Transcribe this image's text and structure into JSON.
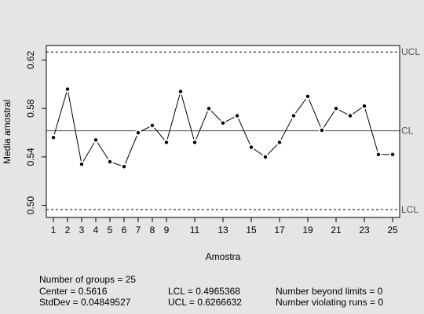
{
  "chart_data": {
    "type": "line",
    "xlabel": "Amostra",
    "ylabel": "Media amostral",
    "xlim": [
      0.5,
      25.5
    ],
    "ylim": [
      0.49,
      0.632
    ],
    "x_ticks": [
      1,
      2,
      3,
      4,
      5,
      6,
      7,
      8,
      9,
      11,
      13,
      15,
      17,
      19,
      21,
      23,
      25
    ],
    "y_ticks": [
      0.5,
      0.54,
      0.58,
      0.62
    ],
    "y_tick_labels": [
      "0.50",
      "0.54",
      "0.58",
      "0.62"
    ],
    "grid": false,
    "x": [
      1,
      2,
      3,
      4,
      5,
      6,
      7,
      8,
      9,
      10,
      11,
      12,
      13,
      14,
      15,
      16,
      17,
      18,
      19,
      20,
      21,
      22,
      23,
      24,
      25
    ],
    "values": [
      0.556,
      0.596,
      0.534,
      0.554,
      0.536,
      0.532,
      0.56,
      0.566,
      0.552,
      0.594,
      0.552,
      0.58,
      0.568,
      0.574,
      0.548,
      0.54,
      0.552,
      0.574,
      0.59,
      0.562,
      0.58,
      0.574,
      0.582,
      0.542,
      0.542
    ],
    "control_lines": [
      {
        "label": "UCL",
        "value": 0.6266632,
        "style": "dashed"
      },
      {
        "label": "CL",
        "value": 0.5616,
        "style": "solid"
      },
      {
        "label": "LCL",
        "value": 0.4965368,
        "style": "dashed"
      }
    ],
    "point_color": "#000000",
    "background_color": "#e5e5e5",
    "plot_background_color": "#ffffff",
    "limit_line_color": "#555555"
  },
  "stats": {
    "groups": "Number of groups = 25",
    "center": "Center = 0.5616",
    "stddev": "StdDev = 0.04849527",
    "lcl": "LCL = 0.4965368",
    "ucl": "UCL = 0.6266632",
    "beyond": "Number beyond limits = 0",
    "violating": "Number violating runs = 0"
  }
}
